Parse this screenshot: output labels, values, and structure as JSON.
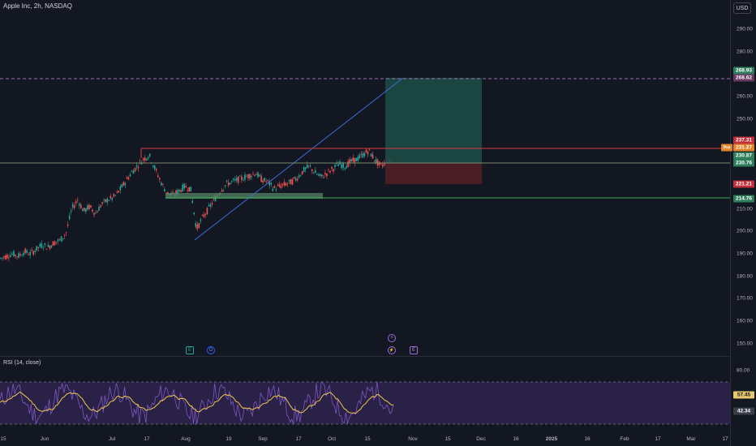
{
  "header": {
    "title": "Apple Inc, 2h, NASDAQ",
    "currency": "USD"
  },
  "price_axis": {
    "labels": [
      "290.00",
      "280.00",
      "270.00",
      "260.00",
      "250.00",
      "240.00",
      "230.00",
      "220.00",
      "210.00",
      "200.00",
      "190.00",
      "180.00",
      "170.00",
      "160.00",
      "150.00"
    ],
    "tags": [
      {
        "text": "268.93",
        "color": "#2e7d5b"
      },
      {
        "text": "268.62",
        "color": "#6a3a64"
      },
      {
        "text": "237.31",
        "color": "#c2303a"
      },
      {
        "text": "231.27",
        "color": "#e0862a"
      },
      {
        "text": "230.87",
        "color": "#2e7d5b"
      },
      {
        "text": "230.76",
        "color": "#2e7d5b"
      },
      {
        "text": "221.21",
        "color": "#c2303a"
      },
      {
        "text": "214.76",
        "color": "#2e7d5b"
      }
    ],
    "pre_label": "Pre"
  },
  "time_axis": [
    "15",
    "Jun",
    "Jul",
    "17",
    "Aug",
    "19",
    "Sep",
    "17",
    "Oct",
    "15",
    "Nov",
    "15",
    "Dec",
    "16",
    "2025",
    "16",
    "Feb",
    "17",
    "Mar",
    "17"
  ],
  "events": {
    "earnings_1": "E",
    "dividend": "D",
    "plus": "+",
    "lightning": "⚡",
    "earnings_2": "E"
  },
  "rsi": {
    "title": "RSI (14, close)",
    "axis_label": "80.00",
    "tag_value_1": "57.45",
    "tag_value_2": "42.34",
    "tag_colors": [
      "#e6c86e",
      "#3a3e4a"
    ]
  },
  "chart_data": {
    "type": "candlestick",
    "symbol": "Apple Inc",
    "interval": "2h",
    "exchange": "NASDAQ",
    "ylim": [
      145,
      297
    ],
    "levels": {
      "horizontal_resistance": 237.31,
      "horizontal_support": 214.76,
      "dashed_top": 268.62
    },
    "position_tool": {
      "target": 268.93,
      "entry": 230.87,
      "stop": 221.21
    },
    "support_zone": [
      214.76,
      216.5
    ],
    "trendline": {
      "from": 197,
      "to": 268.93
    },
    "approx_closes": [
      188,
      189,
      190,
      189,
      191,
      190,
      192,
      194,
      193,
      195,
      196,
      199,
      210,
      214,
      209,
      211,
      208,
      212,
      214,
      215,
      218,
      222,
      226,
      229,
      232,
      234,
      228,
      222,
      217,
      216,
      218,
      220,
      219,
      201,
      206,
      210,
      214,
      218,
      221,
      222,
      223,
      224,
      225,
      226,
      223,
      222,
      219,
      220,
      221,
      222,
      224,
      227,
      229,
      226,
      224,
      226,
      228,
      230,
      229,
      231,
      232,
      234,
      236,
      232,
      229,
      231,
      230.87
    ]
  }
}
